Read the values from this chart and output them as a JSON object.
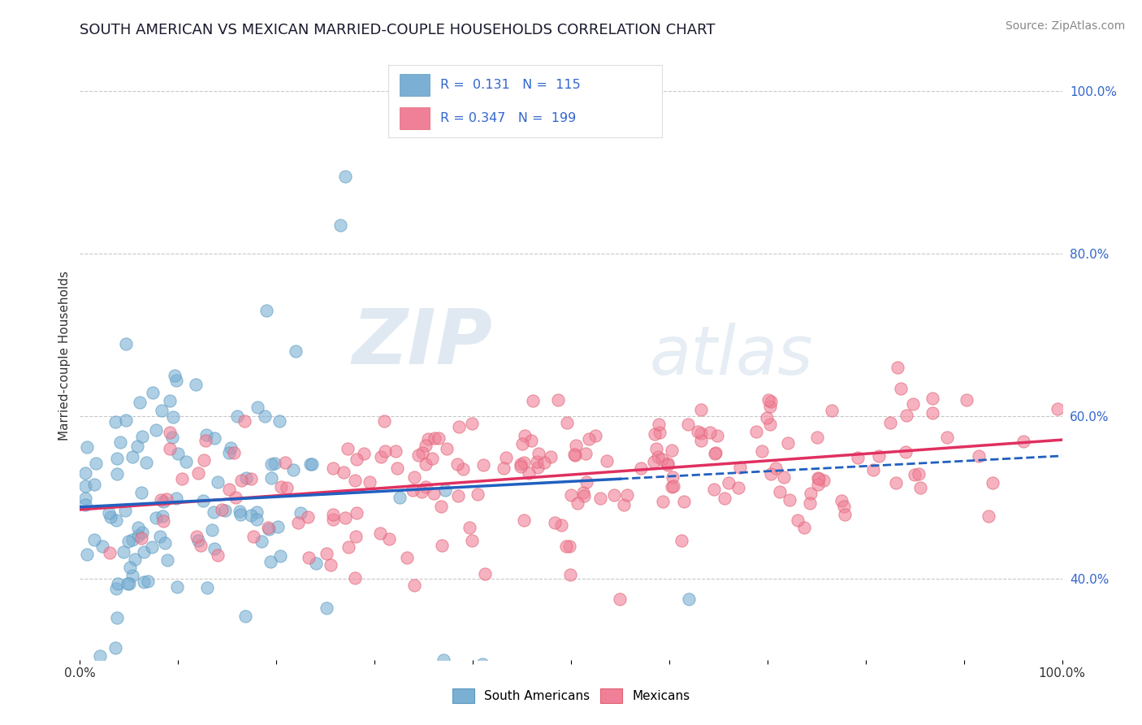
{
  "title": "SOUTH AMERICAN VS MEXICAN MARRIED-COUPLE HOUSEHOLDS CORRELATION CHART",
  "source": "Source: ZipAtlas.com",
  "ylabel": "Married-couple Households",
  "xlim": [
    0.0,
    1.0
  ],
  "ylim": [
    0.3,
    1.05
  ],
  "y_ticks": [
    0.4,
    0.6,
    0.8,
    1.0
  ],
  "south_american_color": "#7bafd4",
  "south_american_edge": "#5a9abf",
  "mexican_color": "#f08098",
  "mexican_edge": "#e06070",
  "south_american_line_color": "#2060c0",
  "mexican_line_color": "#e03060",
  "R_sa": 0.131,
  "N_sa": 115,
  "R_mx": 0.347,
  "N_mx": 199,
  "watermark_zip": "ZIP",
  "watermark_atlas": "atlas",
  "background_color": "#ffffff",
  "grid_color": "#bbbbbb",
  "legend_bottom_labels": [
    "South Americans",
    "Mexicans"
  ]
}
